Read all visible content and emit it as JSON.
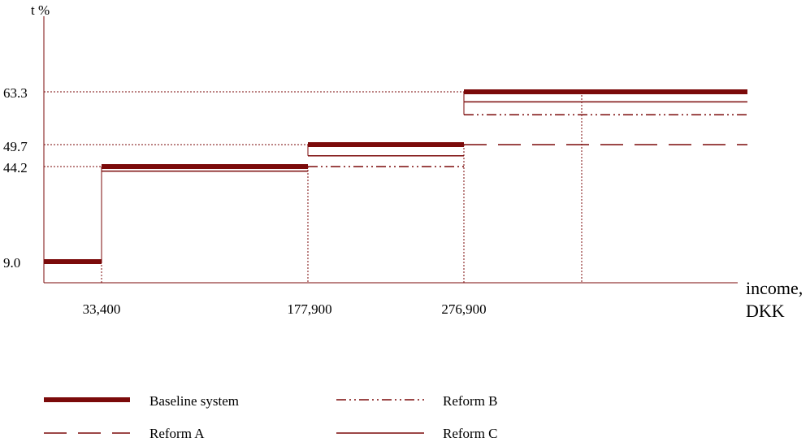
{
  "chart_data": {
    "type": "line",
    "ylabel": "t %",
    "xlabel_line1": "income,",
    "xlabel_line2": "DKK",
    "y_ticks": [
      {
        "value": 63.3,
        "label": "63.3"
      },
      {
        "value": 49.7,
        "label": "49.7"
      },
      {
        "value": 44.2,
        "label": "44.2"
      },
      {
        "value": 9.0,
        "label": "9.0"
      }
    ],
    "x_ticks": [
      {
        "value": 33400,
        "label": "33,400"
      },
      {
        "value": 177900,
        "label": "177,900"
      },
      {
        "value": 276900,
        "label": "276,900"
      }
    ],
    "color": "#7b0a0a",
    "series": [
      {
        "name": "Baseline system",
        "style": "thick-solid",
        "segments": [
          {
            "x_from": 0,
            "x_to": 33400,
            "y": 9.0
          },
          {
            "x_from": 33400,
            "x_to": 177900,
            "y": 44.2
          },
          {
            "x_from": 177900,
            "x_to": 276900,
            "y": 49.7
          },
          {
            "x_from": 276900,
            "x_to": 450000,
            "y": 63.3
          }
        ]
      },
      {
        "name": "Reform A",
        "style": "long-dash",
        "segments": [
          {
            "x_from": 276900,
            "x_to": 450000,
            "y": 49.7
          }
        ]
      },
      {
        "name": "Reform B",
        "style": "dash-dot",
        "segments": [
          {
            "x_from": 177900,
            "x_to": 276900,
            "y": 44.2
          },
          {
            "x_from": 276900,
            "x_to": 450000,
            "y": 57.4
          }
        ]
      },
      {
        "name": "Reform C",
        "style": "thin-solid",
        "segments": [
          {
            "x_from": 33400,
            "x_to": 177900,
            "y": 42.5
          },
          {
            "x_from": 177900,
            "x_to": 276900,
            "y": 46.9
          },
          {
            "x_from": 276900,
            "x_to": 450000,
            "y": 60.7
          }
        ]
      }
    ],
    "extra_vertical_x": 352000
  }
}
